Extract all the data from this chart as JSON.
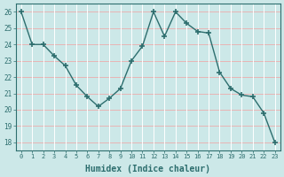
{
  "x": [
    0,
    1,
    2,
    3,
    4,
    5,
    6,
    7,
    8,
    9,
    10,
    11,
    12,
    13,
    14,
    15,
    16,
    17,
    18,
    19,
    20,
    21,
    22,
    23
  ],
  "y": [
    26,
    24,
    24,
    23.3,
    22.7,
    21.5,
    20.8,
    20.2,
    20.7,
    21.3,
    23,
    23.9,
    26,
    24.5,
    26,
    25.3,
    24.8,
    24.7,
    22.3,
    21.3,
    20.9,
    20.8,
    19.8,
    18
  ],
  "xlabel": "Humidex (Indice chaleur)",
  "ylim": [
    17.5,
    26.5
  ],
  "xlim": [
    -0.5,
    23.5
  ],
  "yticks": [
    18,
    19,
    20,
    21,
    22,
    23,
    24,
    25,
    26
  ],
  "xticks": [
    0,
    1,
    2,
    3,
    4,
    5,
    6,
    7,
    8,
    9,
    10,
    11,
    12,
    13,
    14,
    15,
    16,
    17,
    18,
    19,
    20,
    21,
    22,
    23
  ],
  "line_color": "#2d6e6e",
  "marker": "+",
  "marker_size": 5,
  "bg_color": "#cce8e8",
  "hgrid_color": "#e8b4b4",
  "vgrid_color": "#ffffff",
  "spine_color": "#2d6e6e",
  "tick_color": "#2d6e6e",
  "label_color": "#2d6e6e"
}
